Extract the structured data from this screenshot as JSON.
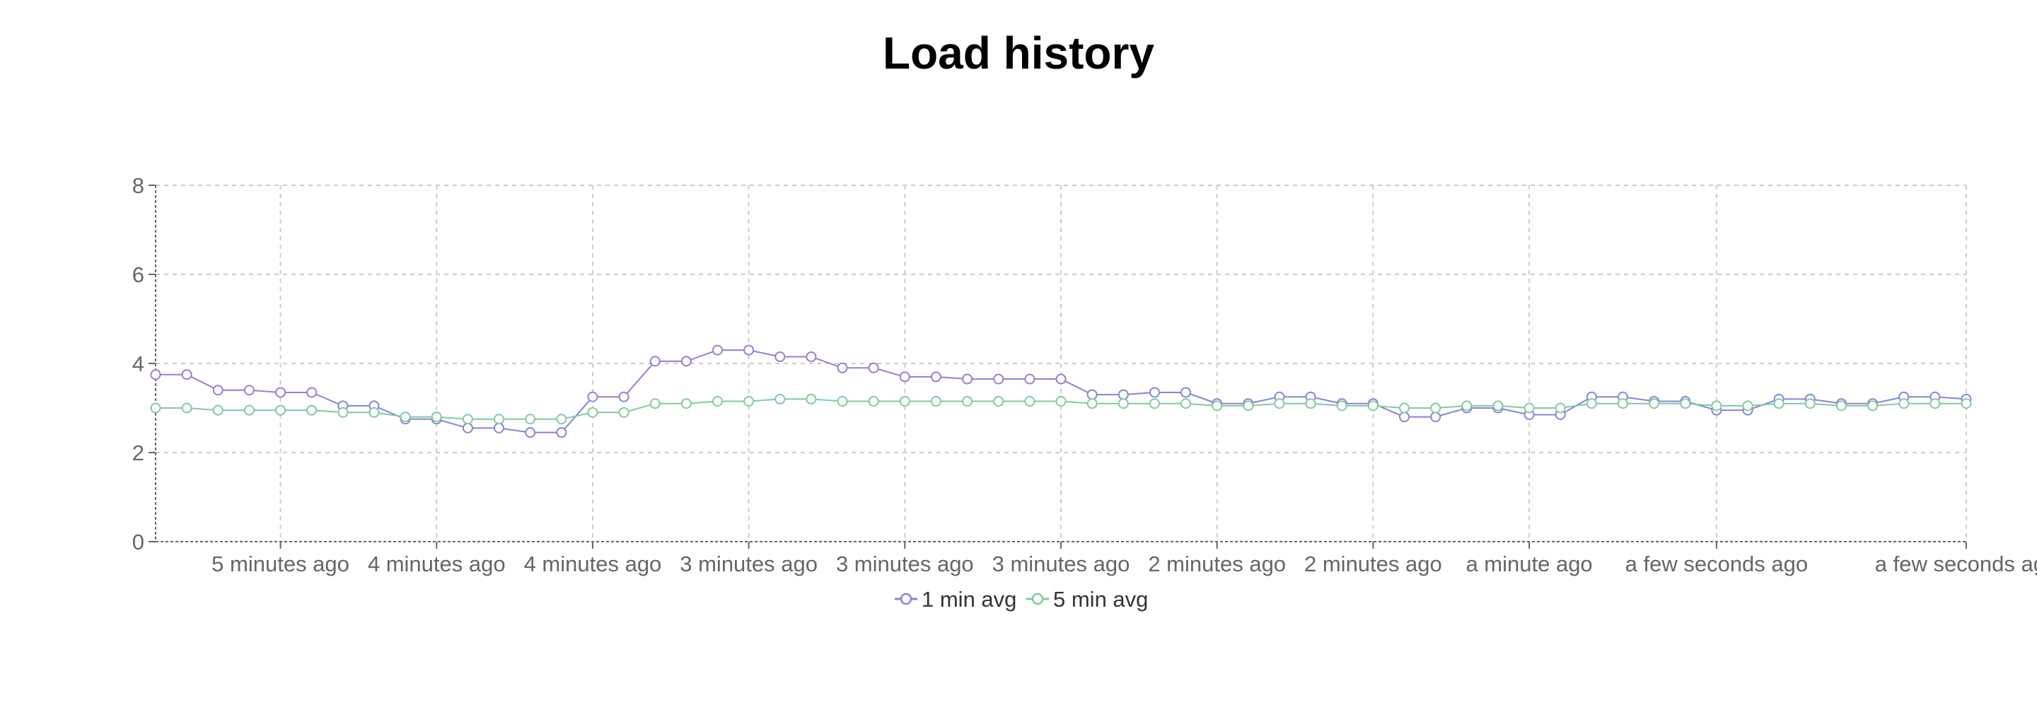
{
  "page": {
    "title": "Load history"
  },
  "chart_data": {
    "type": "line",
    "title": "Load history",
    "xlabel": "",
    "ylabel": "",
    "ylim": [
      0,
      8
    ],
    "yticks": [
      0,
      2,
      4,
      6,
      8
    ],
    "grid": true,
    "legend_position": "bottom-center",
    "x_tick_labels": [
      "5 minutes ago",
      "4 minutes ago",
      "4 minutes ago",
      "3 minutes ago",
      "3 minutes ago",
      "3 minutes ago",
      "2 minutes ago",
      "2 minutes ago",
      "a minute ago",
      "a few seconds ago",
      "a few seconds ago"
    ],
    "x_tick_sample_index": [
      4,
      9,
      14,
      19,
      24,
      29,
      34,
      39,
      44,
      50,
      58
    ],
    "sample_count": 59,
    "series": [
      {
        "name": "1 min avg",
        "color": "#8884d8",
        "values": [
          3.75,
          3.75,
          3.4,
          3.4,
          3.35,
          3.35,
          3.05,
          3.05,
          2.75,
          2.75,
          2.55,
          2.55,
          2.45,
          2.45,
          3.25,
          3.25,
          4.05,
          4.05,
          4.3,
          4.3,
          4.15,
          4.15,
          3.9,
          3.9,
          3.7,
          3.7,
          3.65,
          3.65,
          3.65,
          3.65,
          3.3,
          3.3,
          3.35,
          3.35,
          3.1,
          3.1,
          3.25,
          3.25,
          3.1,
          3.1,
          2.8,
          2.8,
          3.0,
          3.0,
          2.85,
          2.85,
          3.25,
          3.25,
          3.15,
          3.15,
          2.95,
          2.95,
          3.2,
          3.2,
          3.1,
          3.1,
          3.25,
          3.25,
          3.2
        ]
      },
      {
        "name": "5 min avg",
        "color": "#82ca9d",
        "values": [
          3.0,
          3.0,
          2.95,
          2.95,
          2.95,
          2.95,
          2.9,
          2.9,
          2.8,
          2.8,
          2.75,
          2.75,
          2.75,
          2.75,
          2.9,
          2.9,
          3.1,
          3.1,
          3.15,
          3.15,
          3.2,
          3.2,
          3.15,
          3.15,
          3.15,
          3.15,
          3.15,
          3.15,
          3.15,
          3.15,
          3.1,
          3.1,
          3.1,
          3.1,
          3.05,
          3.05,
          3.1,
          3.1,
          3.05,
          3.05,
          3.0,
          3.0,
          3.05,
          3.05,
          3.0,
          3.0,
          3.1,
          3.1,
          3.1,
          3.1,
          3.05,
          3.05,
          3.1,
          3.1,
          3.05,
          3.05,
          3.1,
          3.1,
          3.1
        ]
      }
    ]
  }
}
